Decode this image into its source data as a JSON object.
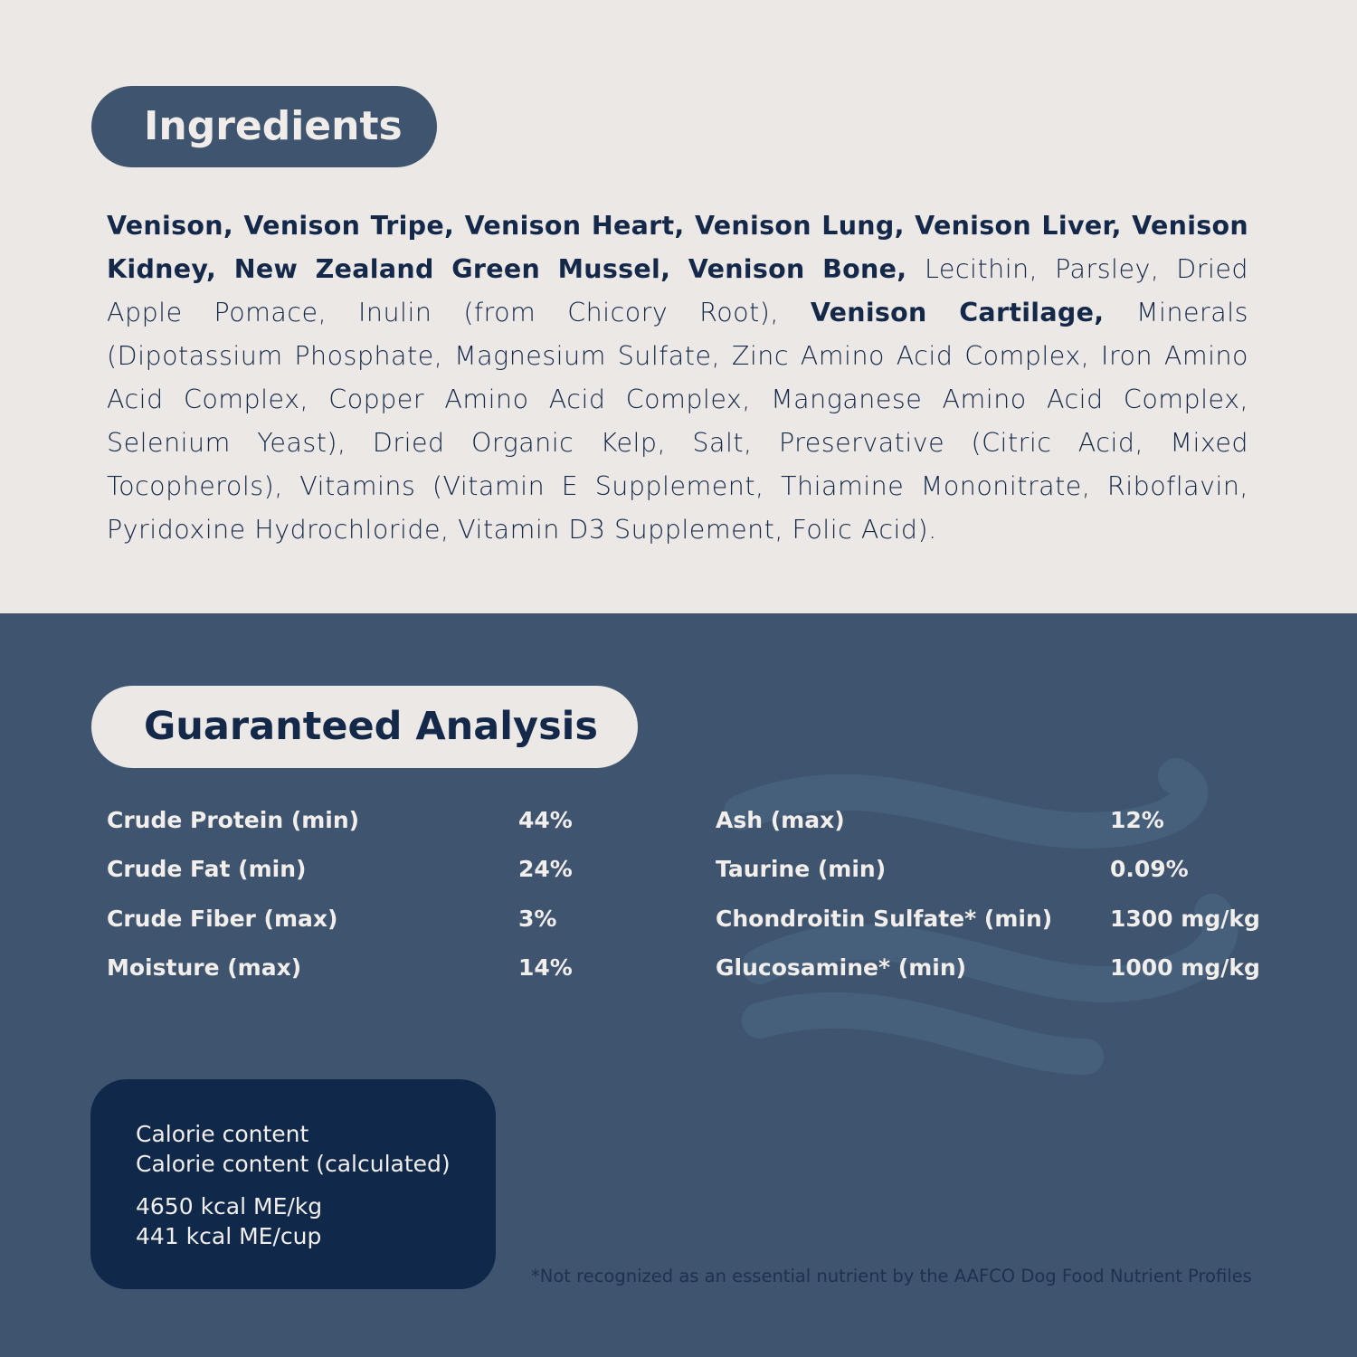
{
  "colors": {
    "background_top": "#ece8e5",
    "background_bottom": "#3e546f",
    "text_navy": "#14284a",
    "calorie_box": "#10294a"
  },
  "ingredients": {
    "title": "Ingredients",
    "segments": [
      {
        "text": "Venison, Venison Tripe, Venison Heart, Venison Lung, Venison Liver, Venison Kidney, New Zealand Green Mussel, Venison Bone, ",
        "bold": true
      },
      {
        "text": "Lecithin, Parsley, Dried Apple Pomace, Inulin (from Chicory Root), ",
        "bold": false
      },
      {
        "text": "Venison Cartilage, ",
        "bold": true
      },
      {
        "text": "Minerals (Dipotassium Phosphate, Magnesium Sulfate, Zinc Amino Acid Complex, Iron Amino Acid Complex, Copper Amino Acid Complex, Manganese Amino Acid Complex, Selenium Yeast), Dried Organic Kelp, Salt, Preservative (Citric Acid, Mixed Tocopherols), Vitamins (Vitamin E Supplement, Thiamine Mononitrate, Riboflavin, Pyridoxine Hydrochloride, Vitamin D3 Supplement, Folic Acid).",
        "bold": false
      }
    ]
  },
  "analysis": {
    "title": "Guaranteed Analysis",
    "left": [
      {
        "label": "Crude Protein (min)",
        "value": "44%"
      },
      {
        "label": "Crude Fat (min)",
        "value": "24%"
      },
      {
        "label": "Crude Fiber (max)",
        "value": "3%"
      },
      {
        "label": "Moisture (max)",
        "value": "14%"
      }
    ],
    "right": [
      {
        "label": "Ash (max)",
        "value": "12%"
      },
      {
        "label": "Taurine (min)",
        "value": "0.09%"
      },
      {
        "label": "Chondroitin Sulfate* (min)",
        "value": "1300 mg/kg"
      },
      {
        "label": "Glucosamine* (min)",
        "value": "1000 mg/kg"
      }
    ]
  },
  "calorie": {
    "line1": "Calorie content",
    "line2": "Calorie content (calculated)",
    "value1": "4650 kcal ME/kg",
    "value2": "441 kcal ME/cup"
  },
  "footnote": "*Not recognized as an essential nutrient by the AAFCO Dog Food Nutrient Profiles",
  "decoration": {
    "icon": "wave-watermark-icon"
  }
}
